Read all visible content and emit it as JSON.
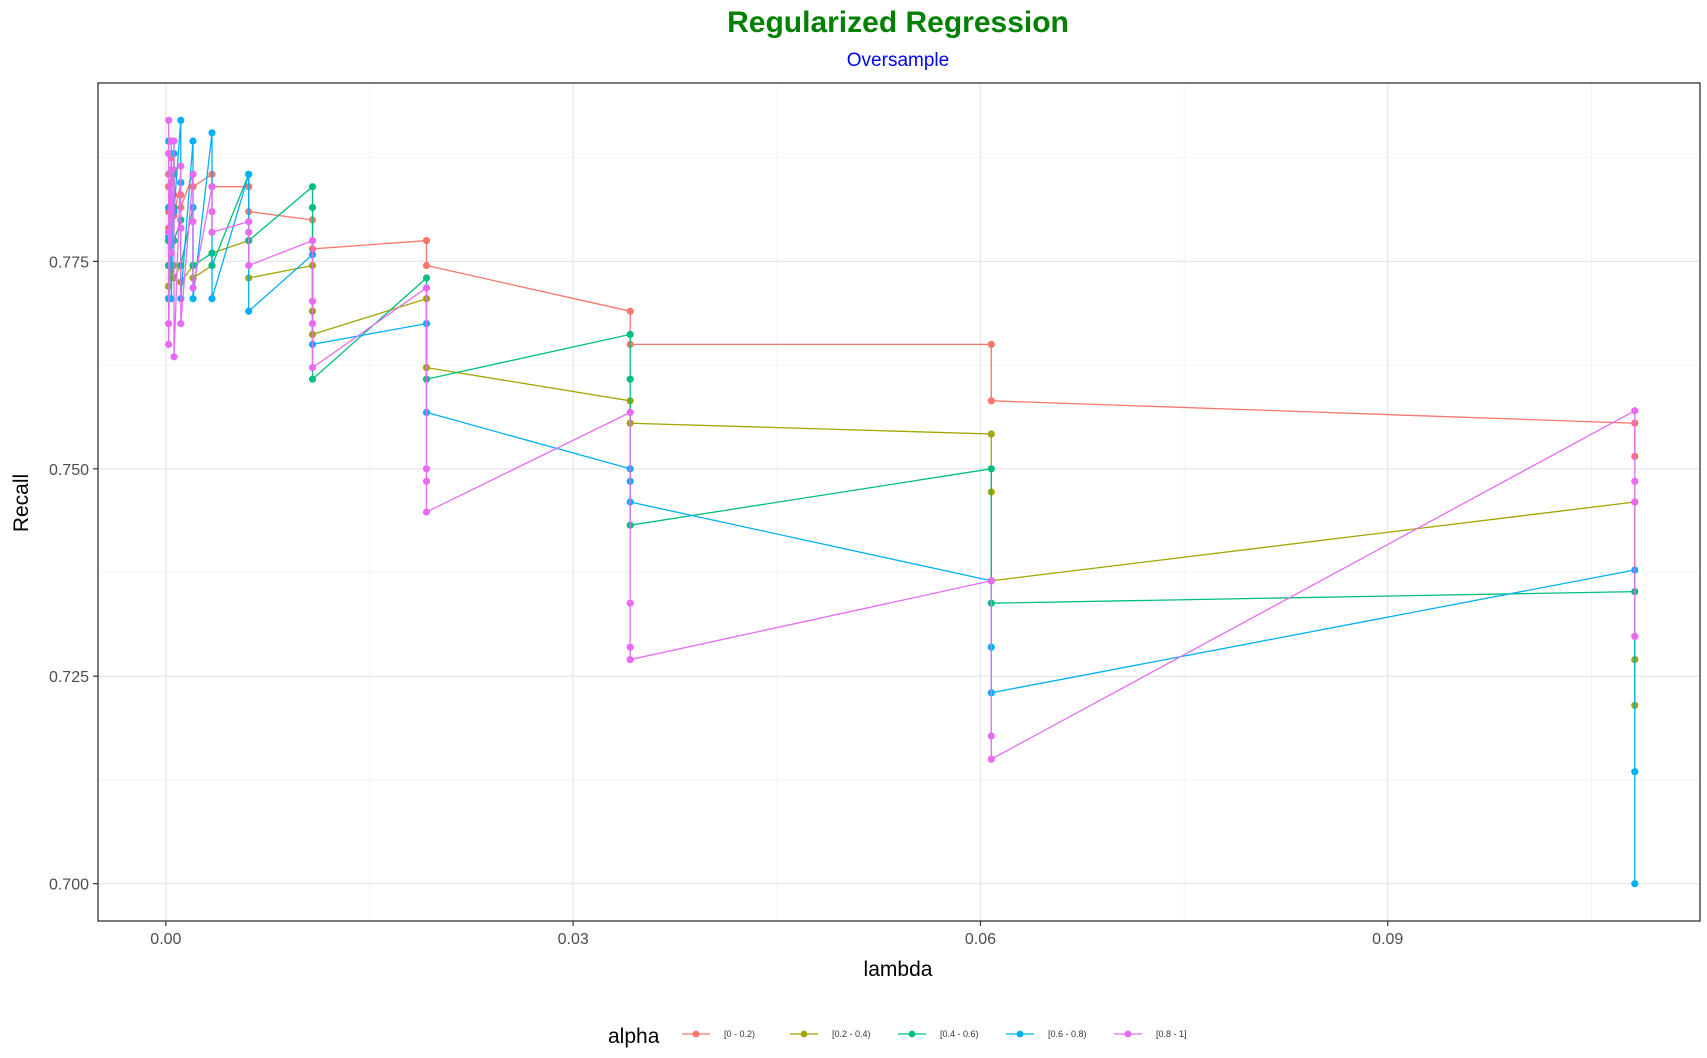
{
  "chart_data": {
    "type": "line",
    "title": "Regularized Regression",
    "subtitle": "Oversample",
    "xlabel": "lambda",
    "ylabel": "Recall",
    "xlim": [
      -0.005,
      0.113
    ],
    "ylim": [
      0.6955,
      0.7965
    ],
    "xticks": [
      0.0,
      0.03,
      0.06,
      0.09
    ],
    "xtick_labels": [
      "0.00",
      "0.03",
      "0.06",
      "0.09"
    ],
    "yticks": [
      0.7,
      0.725,
      0.75,
      0.775
    ],
    "ytick_labels": [
      "0.700",
      "0.725",
      "0.750",
      "0.775"
    ],
    "grid": true,
    "legend": {
      "title": "alpha",
      "position": "bottom"
    },
    "colors": {
      "title": "#008000",
      "subtitle": "#0000ff",
      "series": [
        "#F8766D",
        "#A3A500",
        "#00BF7D",
        "#00B0F6",
        "#E76BF3"
      ]
    },
    "series": [
      {
        "name": "[0 - 0.2)",
        "color": "#F8766D",
        "points": [
          [
            0.0002,
            0.7855
          ],
          [
            0.0002,
            0.784
          ],
          [
            0.0002,
            0.781
          ],
          [
            0.0002,
            0.779
          ],
          [
            0.0002,
            0.7775
          ],
          [
            0.0004,
            0.7875
          ],
          [
            0.0004,
            0.786
          ],
          [
            0.0004,
            0.7845
          ],
          [
            0.0006,
            0.786
          ],
          [
            0.0006,
            0.783
          ],
          [
            0.0006,
            0.7805
          ],
          [
            0.0011,
            0.7845
          ],
          [
            0.0011,
            0.783
          ],
          [
            0.0011,
            0.7815
          ],
          [
            0.002,
            0.7855
          ],
          [
            0.002,
            0.784
          ],
          [
            0.0034,
            0.7855
          ],
          [
            0.0034,
            0.784
          ],
          [
            0.0061,
            0.784
          ],
          [
            0.0061,
            0.781
          ],
          [
            0.0108,
            0.78
          ],
          [
            0.0108,
            0.7765
          ],
          [
            0.0192,
            0.7775
          ],
          [
            0.0192,
            0.7745
          ],
          [
            0.0342,
            0.769
          ],
          [
            0.0342,
            0.765
          ],
          [
            0.0608,
            0.765
          ],
          [
            0.0608,
            0.7582
          ],
          [
            0.1082,
            0.7555
          ],
          [
            0.1082,
            0.7515
          ]
        ]
      },
      {
        "name": "[0.2 - 0.4)",
        "color": "#A3A500",
        "points": [
          [
            0.0002,
            0.7745
          ],
          [
            0.0002,
            0.772
          ],
          [
            0.0002,
            0.7705
          ],
          [
            0.0004,
            0.777
          ],
          [
            0.0004,
            0.7745
          ],
          [
            0.0004,
            0.773
          ],
          [
            0.0006,
            0.7745
          ],
          [
            0.0006,
            0.773
          ],
          [
            0.0011,
            0.7745
          ],
          [
            0.0011,
            0.7725
          ],
          [
            0.002,
            0.7745
          ],
          [
            0.002,
            0.773
          ],
          [
            0.0034,
            0.7745
          ],
          [
            0.0034,
            0.776
          ],
          [
            0.0061,
            0.7775
          ],
          [
            0.0061,
            0.773
          ],
          [
            0.0108,
            0.7745
          ],
          [
            0.0108,
            0.769
          ],
          [
            0.0108,
            0.7662
          ],
          [
            0.0192,
            0.7705
          ],
          [
            0.0192,
            0.7622
          ],
          [
            0.0342,
            0.7582
          ],
          [
            0.0342,
            0.7555
          ],
          [
            0.0608,
            0.7542
          ],
          [
            0.0608,
            0.7472
          ],
          [
            0.0608,
            0.7365
          ],
          [
            0.1082,
            0.746
          ],
          [
            0.1082,
            0.727
          ],
          [
            0.1082,
            0.7215
          ]
        ]
      },
      {
        "name": "[0.4 - 0.6)",
        "color": "#00BF7D",
        "points": [
          [
            0.0002,
            0.7775
          ],
          [
            0.0002,
            0.7745
          ],
          [
            0.0002,
            0.7705
          ],
          [
            0.0004,
            0.7815
          ],
          [
            0.0004,
            0.7775
          ],
          [
            0.0004,
            0.7745
          ],
          [
            0.0006,
            0.7855
          ],
          [
            0.0006,
            0.7815
          ],
          [
            0.0006,
            0.7775
          ],
          [
            0.0011,
            0.78
          ],
          [
            0.0011,
            0.7745
          ],
          [
            0.002,
            0.7815
          ],
          [
            0.002,
            0.7745
          ],
          [
            0.0034,
            0.776
          ],
          [
            0.0034,
            0.7745
          ],
          [
            0.0061,
            0.7855
          ],
          [
            0.0061,
            0.7775
          ],
          [
            0.0108,
            0.784
          ],
          [
            0.0108,
            0.7815
          ],
          [
            0.0108,
            0.7608
          ],
          [
            0.0192,
            0.773
          ],
          [
            0.0192,
            0.7608
          ],
          [
            0.0342,
            0.7662
          ],
          [
            0.0342,
            0.7608
          ],
          [
            0.0342,
            0.7432
          ],
          [
            0.0608,
            0.75
          ],
          [
            0.0608,
            0.7338
          ],
          [
            0.1082,
            0.7352
          ]
        ]
      },
      {
        "name": "[0.6 - 0.8)",
        "color": "#00B0F6",
        "points": [
          [
            0.0002,
            0.7895
          ],
          [
            0.0002,
            0.7815
          ],
          [
            0.0002,
            0.778
          ],
          [
            0.0002,
            0.7705
          ],
          [
            0.0004,
            0.7815
          ],
          [
            0.0004,
            0.7775
          ],
          [
            0.0004,
            0.7705
          ],
          [
            0.0006,
            0.788
          ],
          [
            0.0006,
            0.781
          ],
          [
            0.0011,
            0.792
          ],
          [
            0.0011,
            0.7845
          ],
          [
            0.0011,
            0.7705
          ],
          [
            0.002,
            0.7895
          ],
          [
            0.002,
            0.7815
          ],
          [
            0.002,
            0.7705
          ],
          [
            0.0034,
            0.7905
          ],
          [
            0.0034,
            0.7705
          ],
          [
            0.0061,
            0.7855
          ],
          [
            0.0061,
            0.769
          ],
          [
            0.0108,
            0.7758
          ],
          [
            0.0108,
            0.765
          ],
          [
            0.0192,
            0.7675
          ],
          [
            0.0192,
            0.7568
          ],
          [
            0.0342,
            0.75
          ],
          [
            0.0342,
            0.7485
          ],
          [
            0.0342,
            0.746
          ],
          [
            0.0608,
            0.7365
          ],
          [
            0.0608,
            0.7285
          ],
          [
            0.0608,
            0.723
          ],
          [
            0.1082,
            0.7378
          ],
          [
            0.1082,
            0.7135
          ],
          [
            0.1082,
            0.7
          ]
        ]
      },
      {
        "name": "[0.8 - 1]",
        "color": "#E76BF3",
        "points": [
          [
            0.0002,
            0.792
          ],
          [
            0.0002,
            0.788
          ],
          [
            0.0002,
            0.7785
          ],
          [
            0.0002,
            0.7675
          ],
          [
            0.0002,
            0.765
          ],
          [
            0.0004,
            0.7895
          ],
          [
            0.0004,
            0.786
          ],
          [
            0.0004,
            0.776
          ],
          [
            0.0006,
            0.7895
          ],
          [
            0.0006,
            0.7635
          ],
          [
            0.0011,
            0.7865
          ],
          [
            0.0011,
            0.779
          ],
          [
            0.0011,
            0.7675
          ],
          [
            0.002,
            0.7855
          ],
          [
            0.002,
            0.7798
          ],
          [
            0.002,
            0.7718
          ],
          [
            0.0034,
            0.784
          ],
          [
            0.0034,
            0.781
          ],
          [
            0.0034,
            0.7785
          ],
          [
            0.0061,
            0.7798
          ],
          [
            0.0061,
            0.7785
          ],
          [
            0.0061,
            0.7745
          ],
          [
            0.0108,
            0.7775
          ],
          [
            0.0108,
            0.7702
          ],
          [
            0.0108,
            0.7675
          ],
          [
            0.0108,
            0.7622
          ],
          [
            0.0192,
            0.7718
          ],
          [
            0.0192,
            0.75
          ],
          [
            0.0192,
            0.7485
          ],
          [
            0.0192,
            0.7448
          ],
          [
            0.0342,
            0.7568
          ],
          [
            0.0342,
            0.7338
          ],
          [
            0.0342,
            0.7285
          ],
          [
            0.0342,
            0.727
          ],
          [
            0.0608,
            0.7365
          ],
          [
            0.0608,
            0.7178
          ],
          [
            0.0608,
            0.715
          ],
          [
            0.1082,
            0.757
          ],
          [
            0.1082,
            0.7485
          ],
          [
            0.1082,
            0.746
          ],
          [
            0.1082,
            0.7298
          ]
        ]
      }
    ]
  }
}
